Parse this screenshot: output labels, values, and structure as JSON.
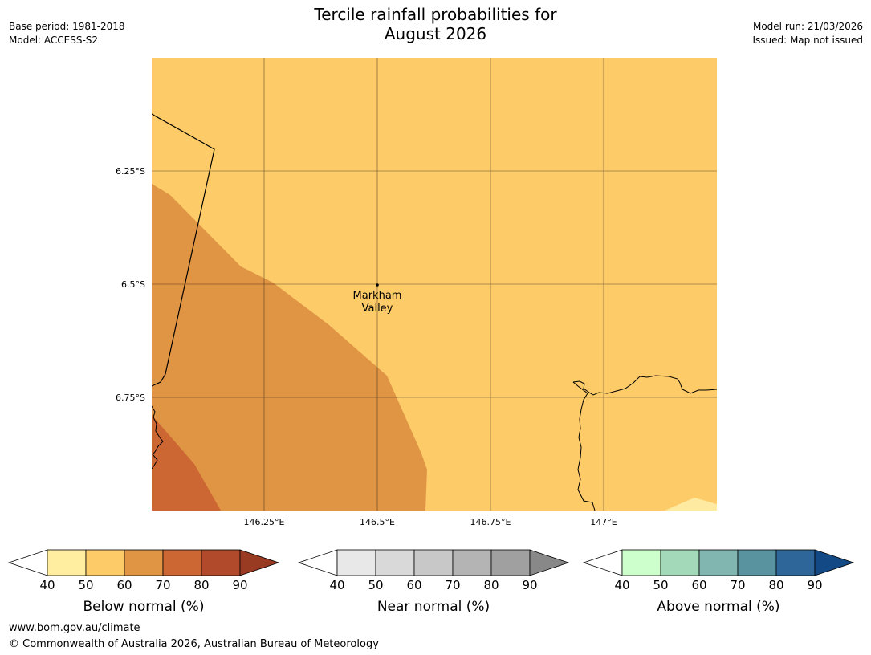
{
  "title": {
    "line1": "Tercile rainfall probabilities for",
    "line2": "August 2026"
  },
  "meta_left": {
    "base_period": "Base period: 1981-2018",
    "model": "Model: ACCESS-S2"
  },
  "meta_right": {
    "model_run": "Model run: 21/03/2026",
    "issued": "Issued: Map not issued"
  },
  "map": {
    "lat_labels": [
      "6.25°S",
      "6.5°S",
      "6.75°S"
    ],
    "lon_labels": [
      "146.25°E",
      "146.5°E",
      "146.75°E",
      "147°E"
    ],
    "place": {
      "line1": "Markham",
      "line2": "Valley"
    },
    "colors": {
      "below_50_60": "#fdcb68",
      "below_60_70": "#e09545",
      "below_70_80": "#cc6633",
      "below_40_50": "#feeaa0"
    }
  },
  "colorbars": [
    {
      "title": "Below normal (%)",
      "ticks": [
        "40",
        "50",
        "60",
        "70",
        "80",
        "90"
      ],
      "colors": [
        "#ffeea0",
        "#fdcb68",
        "#e09545",
        "#cc6633",
        "#b04a2a",
        "#993a22"
      ]
    },
    {
      "title": "Near normal (%)",
      "ticks": [
        "40",
        "50",
        "60",
        "70",
        "80",
        "90"
      ],
      "colors": [
        "#e8e8e8",
        "#d9d9d9",
        "#c8c8c8",
        "#b4b4b4",
        "#a0a0a0",
        "#888888"
      ]
    },
    {
      "title": "Above normal (%)",
      "ticks": [
        "40",
        "50",
        "60",
        "70",
        "80",
        "90"
      ],
      "colors": [
        "#ccffcc",
        "#a3d9b8",
        "#80b5b0",
        "#5a93a0",
        "#2f6699",
        "#134a85"
      ]
    }
  ],
  "footer": {
    "url": "www.bom.gov.au/climate",
    "copyright": "© Commonwealth of Australia 2026, Australian Bureau of Meteorology"
  }
}
